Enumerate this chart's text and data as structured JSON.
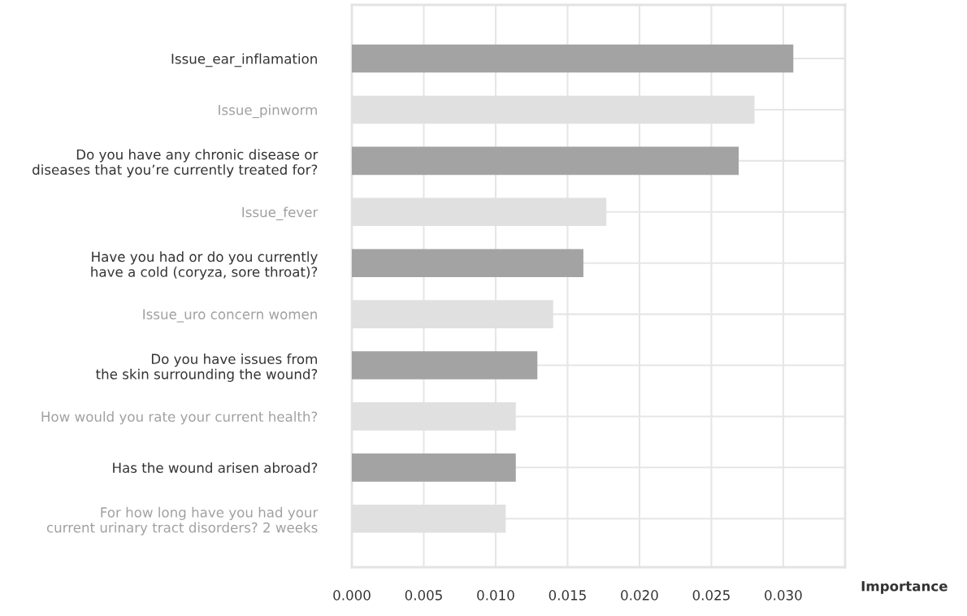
{
  "chart_data": {
    "type": "bar",
    "orientation": "horizontal",
    "xlabel": "Importance",
    "categories": [
      "Issue_ear_inflamation",
      "Issue_pinworm",
      "Do you have any chronic disease or\ndiseases that you’re currently treated for?",
      "Issue_fever",
      "Have you had or do you currently\nhave a cold (coryza, sore throat)?",
      "Issue_uro concern women",
      "Do you have issues from\nthe skin surrounding the wound?",
      "How would you rate your current health?",
      "Has the wound arisen abroad?",
      "For how long have you had your\ncurrent urinary tract disorders? 2 weeks"
    ],
    "values": [
      0.0307,
      0.028,
      0.0269,
      0.0177,
      0.0161,
      0.014,
      0.0129,
      0.0114,
      0.0114,
      0.0107
    ],
    "colors": [
      "#a3a3a3",
      "#e0e0e0",
      "#a3a3a3",
      "#e0e0e0",
      "#a3a3a3",
      "#e0e0e0",
      "#a3a3a3",
      "#e0e0e0",
      "#a3a3a3",
      "#e0e0e0"
    ],
    "xlim": [
      0,
      0.0343
    ],
    "xticks": [
      {
        "value": 0,
        "label": "0.000"
      },
      {
        "value": 0.005,
        "label": "0.005"
      },
      {
        "value": 0.01,
        "label": "0.010"
      },
      {
        "value": 0.015,
        "label": "0.015"
      },
      {
        "value": 0.02,
        "label": "0.020"
      },
      {
        "value": 0.025,
        "label": "0.025"
      },
      {
        "value": 0.03,
        "label": "0.030"
      }
    ],
    "grid": true
  }
}
